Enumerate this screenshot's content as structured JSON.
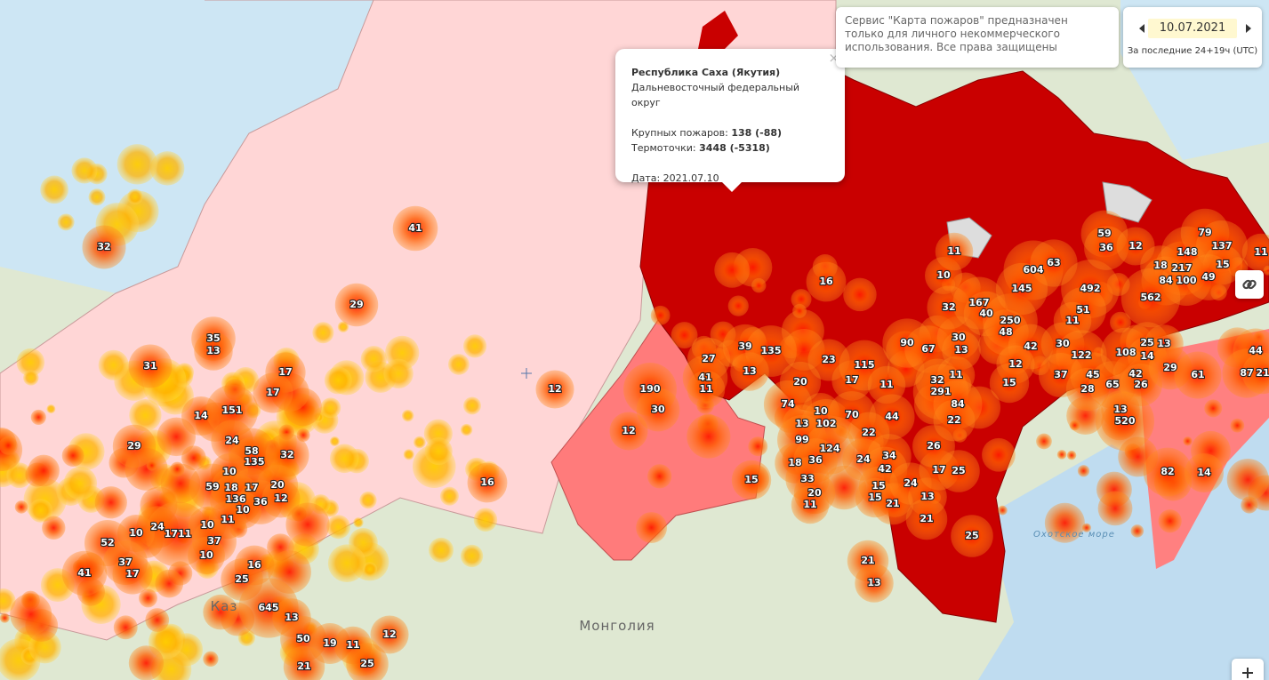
{
  "popup": {
    "title": "Республика Саха (Якутия)",
    "district": "Дальневосточный федеральный округ",
    "large_fires_label": "Крупных пожаров:",
    "large_fires_value": "138 (-88)",
    "hotspots_label": "Термоточки:",
    "hotspots_value": "3448 (-5318)",
    "date": "Дата: 2021.07.10"
  },
  "notice": "Сервис \"Карта пожаров\" предназначен только для личного некоммерческого использования. Все права защищены",
  "date_control": {
    "date": "10.07.2021",
    "period": "За последние 24+19ч (UTC)"
  },
  "map_labels": {
    "country": "Монголия",
    "sea": "Охотское море",
    "country_partial": "Каз"
  },
  "fires": [
    32,
    41,
    29,
    35,
    13,
    31,
    17,
    17,
    14,
    151,
    29,
    24,
    58,
    135,
    32,
    10,
    59,
    18,
    17,
    20,
    136,
    36,
    12,
    10,
    24,
    1711,
    10,
    10,
    11,
    37,
    10,
    52,
    37,
    17,
    41,
    16,
    25,
    645,
    13,
    50,
    19,
    11,
    12,
    21,
    25,
    16,
    12,
    15,
    190,
    30,
    12,
    27,
    41,
    11,
    39,
    135,
    13,
    16,
    23,
    20,
    17,
    115,
    11,
    74,
    10,
    13,
    102,
    70,
    44,
    22,
    99,
    124,
    18,
    36,
    24,
    34,
    42,
    33,
    20,
    11,
    15,
    15,
    21,
    24,
    13,
    17,
    25,
    26,
    21,
    25,
    21,
    13,
    90,
    67,
    30,
    13,
    32,
    11,
    291,
    84,
    22,
    10,
    11,
    32,
    167,
    40,
    250,
    48,
    42,
    12,
    15,
    604,
    63,
    145,
    492,
    51,
    11,
    30,
    122,
    37,
    45,
    28,
    65,
    108,
    25,
    13,
    14,
    42,
    26,
    29,
    59,
    36,
    12,
    18,
    217,
    84,
    100,
    148,
    79,
    137,
    15,
    49,
    562,
    61,
    44,
    87,
    21,
    11,
    13,
    520,
    82,
    14
  ]
}
